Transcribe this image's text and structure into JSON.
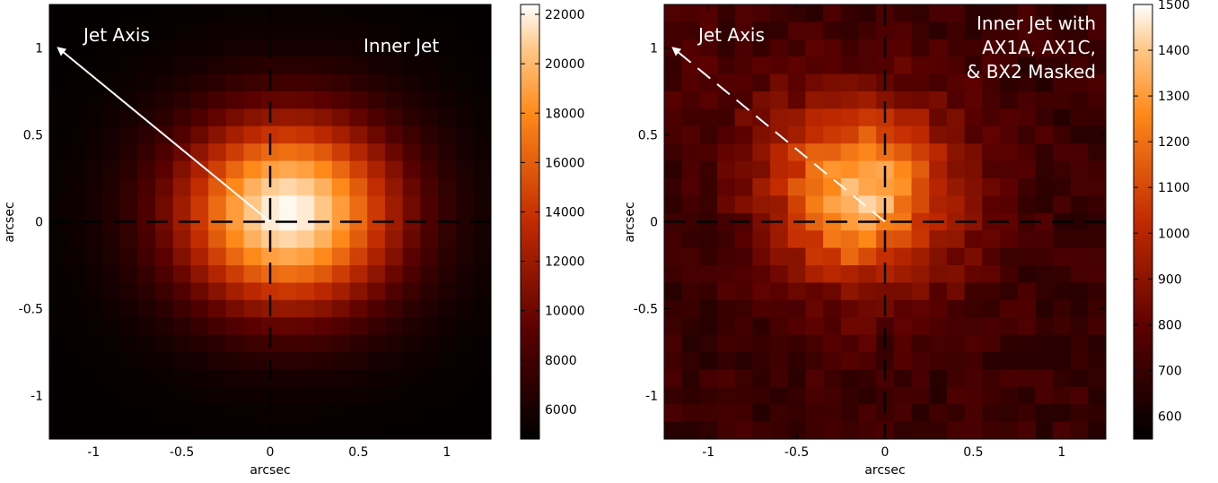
{
  "chart_data": [
    {
      "type": "heatmap",
      "panel": "left",
      "xlabel": "arcsec",
      "ylabel": "arcsec",
      "xlim": [
        -1.25,
        1.25
      ],
      "ylim": [
        -1.25,
        1.25
      ],
      "x_ticks": [
        -1,
        -0.5,
        0,
        0.5,
        1
      ],
      "x_tick_labels": [
        "-1",
        "-0.5",
        "0",
        "0.5",
        "1"
      ],
      "y_ticks": [
        -1,
        -0.5,
        0,
        0.5,
        1
      ],
      "y_tick_labels": [
        "-1",
        "-0.5",
        "0",
        "0.5",
        "1"
      ],
      "grid_size": [
        25,
        25
      ],
      "pixel_scale_arcsec": 0.1,
      "peak_position_arcsec": [
        0.1,
        0.05
      ],
      "peak_value": 22300,
      "background_value": 5000,
      "colormap": "gist_heat",
      "colorbar": {
        "range": [
          4800,
          22400
        ],
        "ticks": [
          6000,
          8000,
          10000,
          12000,
          14000,
          16000,
          18000,
          20000,
          22000
        ],
        "tick_labels": [
          "6000",
          "8000",
          "10000",
          "12000",
          "14000",
          "16000",
          "18000",
          "20000",
          "22000"
        ]
      },
      "crosshair": {
        "x": 0,
        "y": 0,
        "style": "dashed",
        "color": "#000000"
      },
      "jet_axis": {
        "from": [
          0,
          0
        ],
        "to": [
          -1.2,
          1.0
        ],
        "style": "solid",
        "color": "#ffffff"
      },
      "annotations": [
        {
          "text": "Jet Axis",
          "position": "top-left"
        },
        {
          "text": "Inner Jet",
          "position": "top-right"
        }
      ]
    },
    {
      "type": "heatmap",
      "panel": "right",
      "xlabel": "arcsec",
      "ylabel": "arcsec",
      "xlim": [
        -1.25,
        1.25
      ],
      "ylim": [
        -1.25,
        1.25
      ],
      "x_ticks": [
        -1,
        -0.5,
        0,
        0.5,
        1
      ],
      "x_tick_labels": [
        "-1",
        "-0.5",
        "0",
        "0.5",
        "1"
      ],
      "y_ticks": [
        -1,
        -0.5,
        0,
        0.5,
        1
      ],
      "y_tick_labels": [
        "-1",
        "-0.5",
        "0",
        "0.5",
        "1"
      ],
      "grid_size": [
        25,
        25
      ],
      "pixel_scale_arcsec": 0.1,
      "peak_position_arcsec": [
        -0.1,
        0.15
      ],
      "peak_value": 1480,
      "background_value": 700,
      "noise_amplitude": 55,
      "colormap": "gist_heat",
      "colorbar": {
        "range": [
          550,
          1500
        ],
        "ticks": [
          600,
          700,
          800,
          900,
          1000,
          1100,
          1200,
          1300,
          1400,
          1500
        ],
        "tick_labels": [
          "600",
          "700",
          "800",
          "900",
          "1000",
          "1100",
          "1200",
          "1300",
          "1400",
          "1500"
        ]
      },
      "crosshair": {
        "x": 0,
        "y": 0,
        "style": "dashed",
        "color": "#000000"
      },
      "jet_axis": {
        "from": [
          0,
          0
        ],
        "to": [
          -1.2,
          1.0
        ],
        "style": "dashed",
        "color": "#ffffff"
      },
      "annotations": [
        {
          "text": "Jet Axis",
          "position": "top-left"
        },
        {
          "text": "Inner Jet with",
          "position": "top-right"
        },
        {
          "text": "AX1A, AX1C,",
          "position": "top-right"
        },
        {
          "text": "& BX2 Masked",
          "position": "top-right"
        }
      ]
    }
  ]
}
